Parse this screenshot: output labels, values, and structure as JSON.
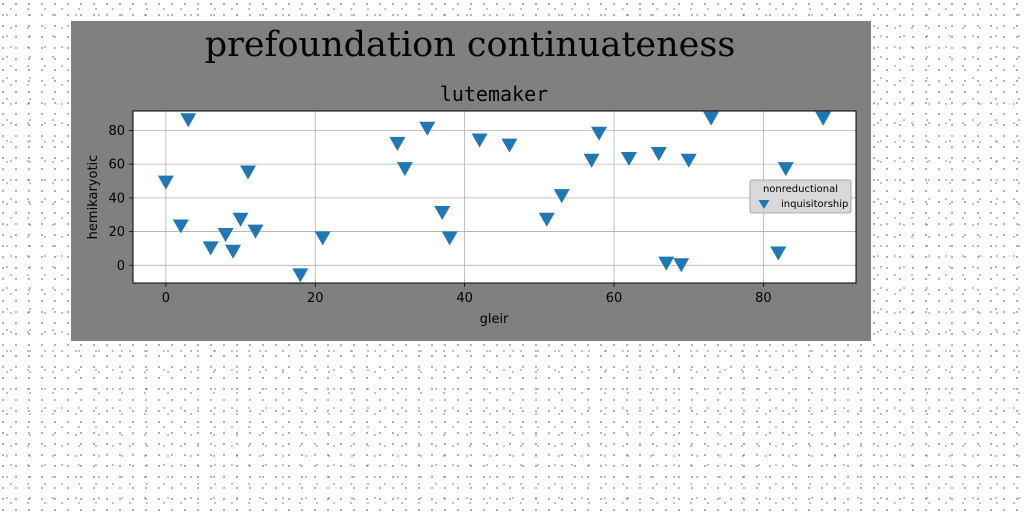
{
  "colors": {
    "figure_bg": "#808080",
    "plot_bg": "#ffffff",
    "marker": "#1f77b4",
    "grid": "#b0b0b0",
    "legend_bg": "#d9d9d9"
  },
  "chart_data": {
    "type": "scatter",
    "suptitle": "prefoundation continuateness",
    "title": "lutemaker",
    "xlabel": "gleir",
    "ylabel": "hemikaryotic",
    "xlim": [
      -4.4,
      92.4
    ],
    "ylim": [
      -10.5,
      91.5
    ],
    "xticks": [
      0,
      20,
      40,
      60,
      80
    ],
    "yticks": [
      0,
      20,
      40,
      60,
      80
    ],
    "grid": true,
    "marker": "triangle-down",
    "legend": {
      "title": "nonreductional",
      "position": "right"
    },
    "series": [
      {
        "name": "inquisitorship",
        "points": [
          [
            0,
            49
          ],
          [
            2,
            23
          ],
          [
            3,
            86
          ],
          [
            6,
            10
          ],
          [
            8,
            18
          ],
          [
            9,
            8
          ],
          [
            10,
            27
          ],
          [
            11,
            55
          ],
          [
            12,
            20
          ],
          [
            18,
            -6
          ],
          [
            21,
            16
          ],
          [
            31,
            72
          ],
          [
            32,
            57
          ],
          [
            35,
            81
          ],
          [
            37,
            31
          ],
          [
            38,
            16
          ],
          [
            42,
            74
          ],
          [
            46,
            71
          ],
          [
            51,
            27
          ],
          [
            53,
            41
          ],
          [
            57,
            62
          ],
          [
            58,
            78
          ],
          [
            62,
            63
          ],
          [
            66,
            66
          ],
          [
            67,
            1
          ],
          [
            69,
            0
          ],
          [
            70,
            62
          ],
          [
            73,
            87
          ],
          [
            82,
            7
          ],
          [
            83,
            57
          ],
          [
            88,
            87
          ]
        ]
      }
    ]
  }
}
